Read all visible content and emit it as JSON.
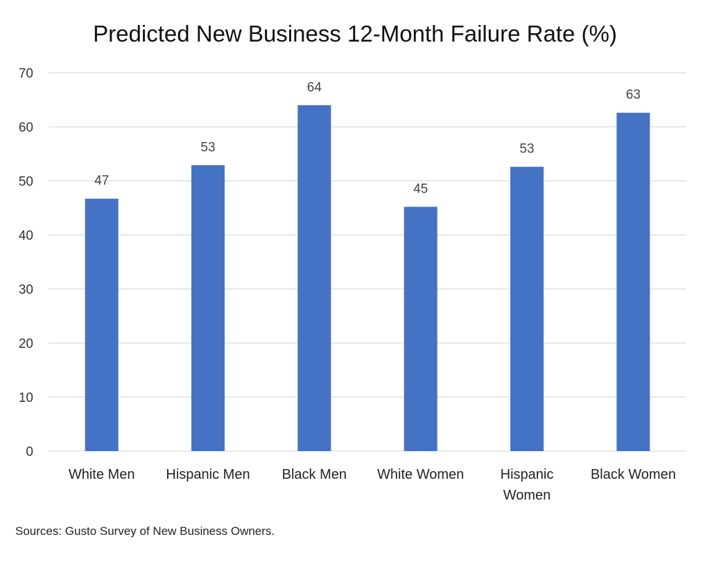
{
  "chart_data": {
    "type": "bar",
    "title": "Predicted New Business 12-Month Failure Rate (%)",
    "xlabel": "",
    "ylabel": "",
    "categories": [
      [
        "White Men"
      ],
      [
        "Hispanic Men"
      ],
      [
        "Black Men"
      ],
      [
        "White Women"
      ],
      [
        "Hispanic",
        "Women"
      ],
      [
        "Black Women"
      ]
    ],
    "values": [
      46.7,
      52.9,
      64.0,
      45.2,
      52.6,
      62.6
    ],
    "data_labels": [
      "47",
      "53",
      "64",
      "45",
      "53",
      "63"
    ],
    "ylim": [
      0,
      70
    ],
    "yticks": [
      0,
      10,
      20,
      30,
      40,
      50,
      60,
      70
    ],
    "grid": true,
    "legend": "none",
    "bar_color": "#4472C4"
  },
  "footer": {
    "source": "Sources: Gusto Survey of New Business Owners."
  }
}
